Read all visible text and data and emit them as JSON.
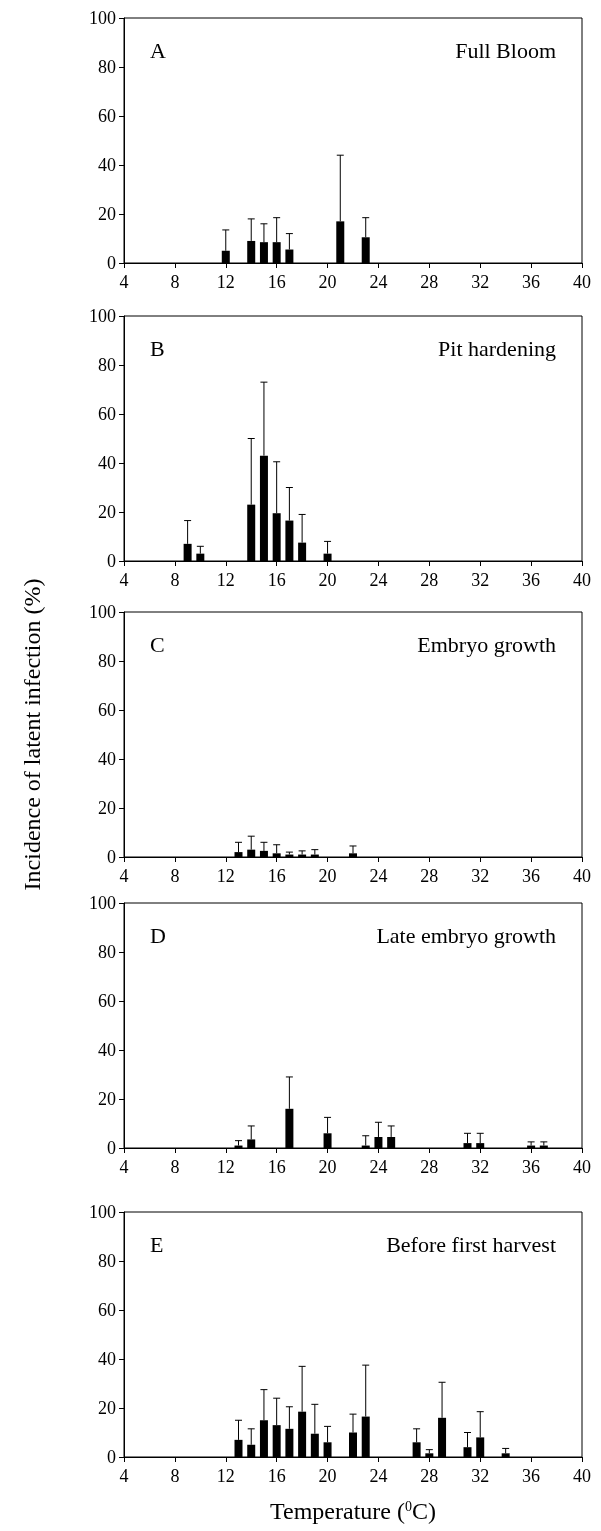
{
  "chart_data": [
    {
      "type": "bar",
      "title": "A",
      "subtitle": "Full Bloom",
      "x": [
        12,
        14,
        15,
        16,
        17,
        21,
        23
      ],
      "values": [
        5,
        9,
        8.5,
        8.5,
        5.5,
        17,
        10.5
      ],
      "errors": [
        [
          5,
          13.5
        ],
        [
          9,
          18
        ],
        [
          8.5,
          16
        ],
        [
          8.5,
          18.5
        ],
        [
          5.5,
          12
        ],
        [
          17,
          44
        ],
        [
          10.5,
          18.5
        ]
      ],
      "color": "#000000",
      "xlim": [
        4,
        40
      ],
      "xticks": [
        4,
        8,
        12,
        16,
        20,
        24,
        28,
        32,
        36,
        40
      ],
      "ylim": [
        0,
        100
      ],
      "yticks": [
        0,
        20,
        40,
        60,
        80,
        100
      ],
      "grid": false
    },
    {
      "type": "bar",
      "title": "B",
      "subtitle": "Pit hardening",
      "x": [
        9,
        10,
        14,
        15,
        16,
        17,
        18,
        20
      ],
      "values": [
        7,
        3,
        23,
        43,
        19.5,
        16.5,
        7.5,
        3
      ],
      "errors": [
        [
          7,
          16.5
        ],
        [
          3,
          6
        ],
        [
          23,
          50
        ],
        [
          43,
          73
        ],
        [
          19.5,
          40.5
        ],
        [
          16.5,
          30
        ],
        [
          7.5,
          19
        ],
        [
          3,
          8
        ]
      ],
      "color": "#000000",
      "xlim": [
        4,
        40
      ],
      "xticks": [
        4,
        8,
        12,
        16,
        20,
        24,
        28,
        32,
        36,
        40
      ],
      "ylim": [
        0,
        100
      ],
      "yticks": [
        0,
        20,
        40,
        60,
        80,
        100
      ],
      "grid": false
    },
    {
      "type": "bar",
      "title": "C",
      "subtitle": "Embryo growth",
      "ylabel": "Incidence of latent infection (%)",
      "x": [
        13,
        14,
        15,
        16,
        17,
        18,
        19,
        22
      ],
      "values": [
        2,
        3,
        2.5,
        1.5,
        1,
        1,
        1,
        1.5
      ],
      "errors": [
        [
          2,
          6
        ],
        [
          3,
          8.5
        ],
        [
          2.5,
          6
        ],
        [
          1.5,
          5
        ],
        [
          1,
          2
        ],
        [
          1,
          2.5
        ],
        [
          1,
          3
        ],
        [
          1.5,
          4.5
        ]
      ],
      "color": "#000000",
      "xlim": [
        4,
        40
      ],
      "xticks": [
        4,
        8,
        12,
        16,
        20,
        24,
        28,
        32,
        36,
        40
      ],
      "ylim": [
        0,
        100
      ],
      "yticks": [
        0,
        20,
        40,
        60,
        80,
        100
      ],
      "grid": false
    },
    {
      "type": "bar",
      "title": "D",
      "subtitle": "Late embryo growth",
      "x": [
        13,
        14,
        17,
        20,
        23,
        24,
        25,
        31,
        32,
        36,
        37
      ],
      "values": [
        1,
        3.5,
        16,
        6,
        1,
        4.5,
        4.5,
        2,
        2,
        1,
        1
      ],
      "errors": [
        [
          1,
          3
        ],
        [
          3.5,
          9
        ],
        [
          16,
          29
        ],
        [
          6,
          12.5
        ],
        [
          1,
          5
        ],
        [
          4.5,
          10.5
        ],
        [
          4.5,
          9
        ],
        [
          2,
          6
        ],
        [
          2,
          6
        ],
        [
          1,
          2.5
        ],
        [
          1,
          2.5
        ]
      ],
      "color": "#000000",
      "xlim": [
        4,
        40
      ],
      "xticks": [
        4,
        8,
        12,
        16,
        20,
        24,
        28,
        32,
        36,
        40
      ],
      "ylim": [
        0,
        100
      ],
      "yticks": [
        0,
        20,
        40,
        60,
        80,
        100
      ],
      "grid": false
    },
    {
      "type": "bar",
      "title": "E",
      "subtitle": "Before first harvest",
      "xlabel": "Temperature ($^{0}$C)",
      "x": [
        13,
        14,
        15,
        16,
        17,
        18,
        19,
        20,
        22,
        23,
        27,
        28,
        29,
        31,
        32,
        34
      ],
      "values": [
        7,
        5,
        15,
        13,
        11.5,
        18.5,
        9.5,
        6,
        10,
        16.5,
        6,
        1.5,
        16,
        4,
        8,
        1.5
      ],
      "errors": [
        [
          7,
          15
        ],
        [
          5,
          11.5
        ],
        [
          15,
          27.5
        ],
        [
          13,
          24
        ],
        [
          11.5,
          20.5
        ],
        [
          18.5,
          37
        ],
        [
          9.5,
          21.5
        ],
        [
          6,
          12.5
        ],
        [
          10,
          17.5
        ],
        [
          16.5,
          37.5
        ],
        [
          6,
          11.5
        ],
        [
          1.5,
          3
        ],
        [
          16,
          30.5
        ],
        [
          4,
          10
        ],
        [
          8,
          18.5
        ],
        [
          1.5,
          3.5
        ]
      ],
      "color": "#000000",
      "xlim": [
        4,
        40
      ],
      "xticks": [
        4,
        8,
        12,
        16,
        20,
        24,
        28,
        32,
        36,
        40
      ],
      "ylim": [
        0,
        100
      ],
      "yticks": [
        0,
        20,
        40,
        60,
        80,
        100
      ],
      "grid": false
    }
  ]
}
